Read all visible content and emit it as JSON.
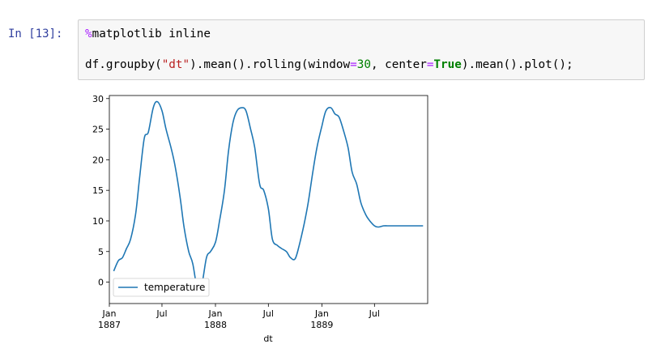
{
  "cell": {
    "prompt": "In [13]:",
    "line1": {
      "magic": "%",
      "rest": "matplotlib inline"
    },
    "line2": {
      "t1": "df.groupby(",
      "t2": "\"dt\"",
      "t3": ").mean().rolling(window",
      "t4": "=",
      "t5": "30",
      "t6": ", center",
      "t7": "=",
      "t8": "True",
      "t9": ").mean().plot();"
    }
  },
  "chart_data": {
    "type": "line",
    "xlabel": "dt",
    "ylabel": "",
    "ylim": [
      -3.5,
      30.5
    ],
    "y_ticks": [
      0,
      5,
      10,
      15,
      20,
      25,
      30
    ],
    "x_ticks": [
      {
        "x": "1887-01-01",
        "label": "Jan",
        "label2": "1887"
      },
      {
        "x": "1887-07-01",
        "label": "Jul",
        "label2": ""
      },
      {
        "x": "1888-01-01",
        "label": "Jan",
        "label2": "1888"
      },
      {
        "x": "1888-07-01",
        "label": "Jul",
        "label2": ""
      },
      {
        "x": "1889-01-01",
        "label": "Jan",
        "label2": "1889"
      },
      {
        "x": "1889-07-01",
        "label": "Jul",
        "label2": ""
      }
    ],
    "legend": {
      "position": "lower-left",
      "entries": [
        "temperature"
      ]
    },
    "series": [
      {
        "name": "temperature",
        "color": "#1f77b4",
        "x": [
          "1887-01-16",
          "1887-02-01",
          "1887-02-15",
          "1887-03-01",
          "1887-03-15",
          "1887-04-01",
          "1887-04-15",
          "1887-05-01",
          "1887-05-15",
          "1887-06-01",
          "1887-06-15",
          "1887-07-01",
          "1887-07-15",
          "1887-08-01",
          "1887-08-15",
          "1887-09-01",
          "1887-09-15",
          "1887-10-01",
          "1887-10-15",
          "1887-11-01",
          "1887-11-15",
          "1887-12-01",
          "1887-12-15",
          "1888-01-01",
          "1888-01-15",
          "1888-02-01",
          "1888-02-15",
          "1888-03-01",
          "1888-03-15",
          "1888-04-01",
          "1888-04-15",
          "1888-05-01",
          "1888-05-15",
          "1888-06-01",
          "1888-06-15",
          "1888-07-01",
          "1888-07-15",
          "1888-08-01",
          "1888-08-15",
          "1888-09-01",
          "1888-09-15",
          "1888-10-01",
          "1888-10-15",
          "1888-11-01",
          "1888-11-15",
          "1888-12-01",
          "1888-12-15",
          "1889-01-01",
          "1889-01-15",
          "1889-02-01",
          "1889-02-15",
          "1889-03-01",
          "1889-03-15",
          "1889-04-01",
          "1889-04-15",
          "1889-05-01",
          "1889-05-15",
          "1889-06-01",
          "1889-06-15",
          "1889-07-01",
          "1889-07-15",
          "1889-08-01",
          "1889-08-15",
          "1889-09-01",
          "1889-09-15",
          "1889-10-01",
          "1889-10-15",
          "1889-11-01",
          "1889-11-15",
          "1889-12-01",
          "1889-12-15"
        ],
        "y": [
          1.8,
          3.5,
          4.0,
          5.5,
          7.0,
          11.0,
          17.0,
          23.5,
          24.5,
          28.5,
          29.5,
          28.0,
          25.0,
          22.0,
          19.0,
          14.0,
          9.0,
          5.0,
          3.0,
          -1.5,
          -0.5,
          4.0,
          5.0,
          6.5,
          10.0,
          15.0,
          21.5,
          26.0,
          28.0,
          28.5,
          28.0,
          25.0,
          22.0,
          16.0,
          15.0,
          12.0,
          7.0,
          6.0,
          5.5,
          5.0,
          4.0,
          3.8,
          6.0,
          9.5,
          13.0,
          18.0,
          22.0,
          25.5,
          28.0,
          28.5,
          27.5,
          27.0,
          25.0,
          22.0,
          18.0,
          16.0,
          13.0,
          11.0,
          10.0,
          9.2,
          9.0,
          9.2,
          9.2,
          9.2,
          9.2,
          9.2,
          9.2,
          9.2,
          9.2,
          9.2,
          9.2
        ]
      }
    ]
  }
}
